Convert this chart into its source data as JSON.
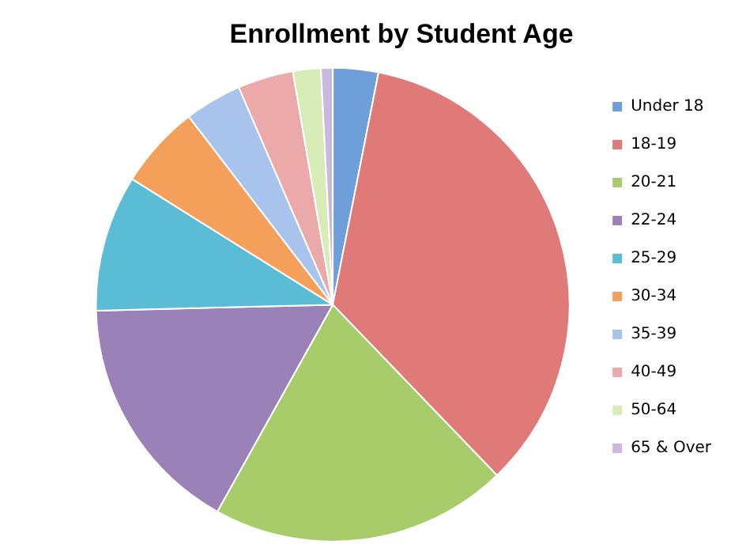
{
  "chart_data": {
    "type": "pie",
    "title": "Enrollment by Student Age",
    "categories": [
      "Under 18",
      "18-19",
      "20-21",
      "22-24",
      "25-29",
      "30-34",
      "35-39",
      "40-49",
      "50-64",
      "65 & Over"
    ],
    "values": [
      3.1,
      34.7,
      20.3,
      16.5,
      9.3,
      5.7,
      3.9,
      3.8,
      1.9,
      0.8
    ],
    "colors": [
      "#6f9fd8",
      "#e07a78",
      "#a8cc6a",
      "#9a82b8",
      "#5bbcd6",
      "#f5a05a",
      "#a9c4ec",
      "#eca9a9",
      "#d8ecb8",
      "#c9b8e0"
    ],
    "legend": "right"
  }
}
